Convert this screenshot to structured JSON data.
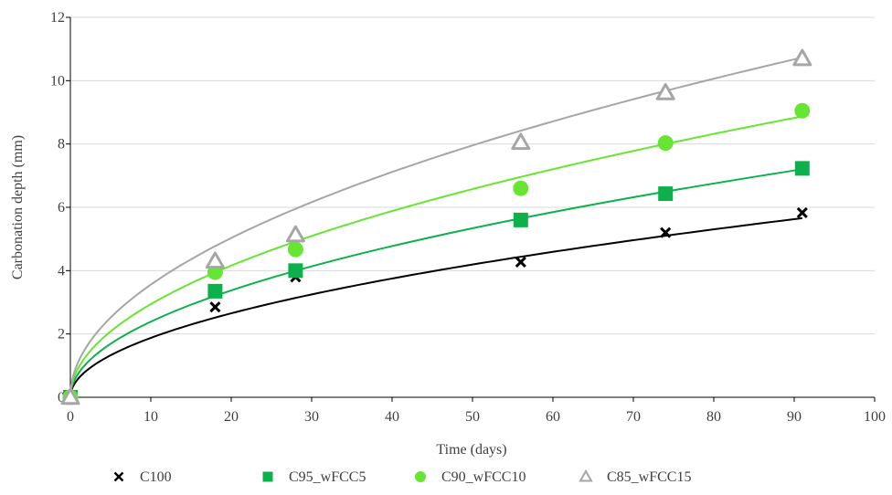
{
  "chart_data": {
    "type": "scatter",
    "xlabel": "Time (days)",
    "ylabel": "Carbonation depth (mm)",
    "xlim": [
      0,
      100
    ],
    "ylim": [
      0,
      12
    ],
    "xticks": [
      "0",
      "10",
      "20",
      "30",
      "40",
      "50",
      "60",
      "70",
      "80",
      "90",
      "100"
    ],
    "yticks": [
      "0",
      "2",
      "4",
      "6",
      "8",
      "10",
      "12"
    ],
    "grid": "horizontal",
    "legend_position": "bottom",
    "trendline": "power (square-root of time)",
    "series": [
      {
        "name": "C100",
        "marker": "cross",
        "color": "#000000",
        "x": [
          0,
          18,
          28,
          56,
          74,
          91
        ],
        "y": [
          0,
          2.85,
          3.8,
          4.27,
          5.2,
          5.83
        ],
        "fit_coefficient": 0.593
      },
      {
        "name": "C95_wFCC5",
        "marker": "square",
        "color": "#0db14b",
        "x": [
          0,
          18,
          28,
          56,
          74,
          91
        ],
        "y": [
          0,
          3.35,
          4.0,
          5.6,
          6.43,
          7.23
        ],
        "fit_coefficient": 0.755
      },
      {
        "name": "C90_wFCC10",
        "marker": "circle",
        "color": "#66e633",
        "x": [
          0,
          18,
          28,
          56,
          74,
          91
        ],
        "y": [
          0,
          3.95,
          4.67,
          6.6,
          8.03,
          9.05
        ],
        "fit_coefficient": 0.93
      },
      {
        "name": "C85_wFCC15",
        "marker": "triangle",
        "color": "#a6a6a6",
        "x": [
          0,
          18,
          28,
          56,
          74,
          91
        ],
        "y": [
          0,
          4.3,
          5.13,
          8.05,
          9.62,
          10.7
        ],
        "fit_coefficient": 1.125
      }
    ]
  }
}
